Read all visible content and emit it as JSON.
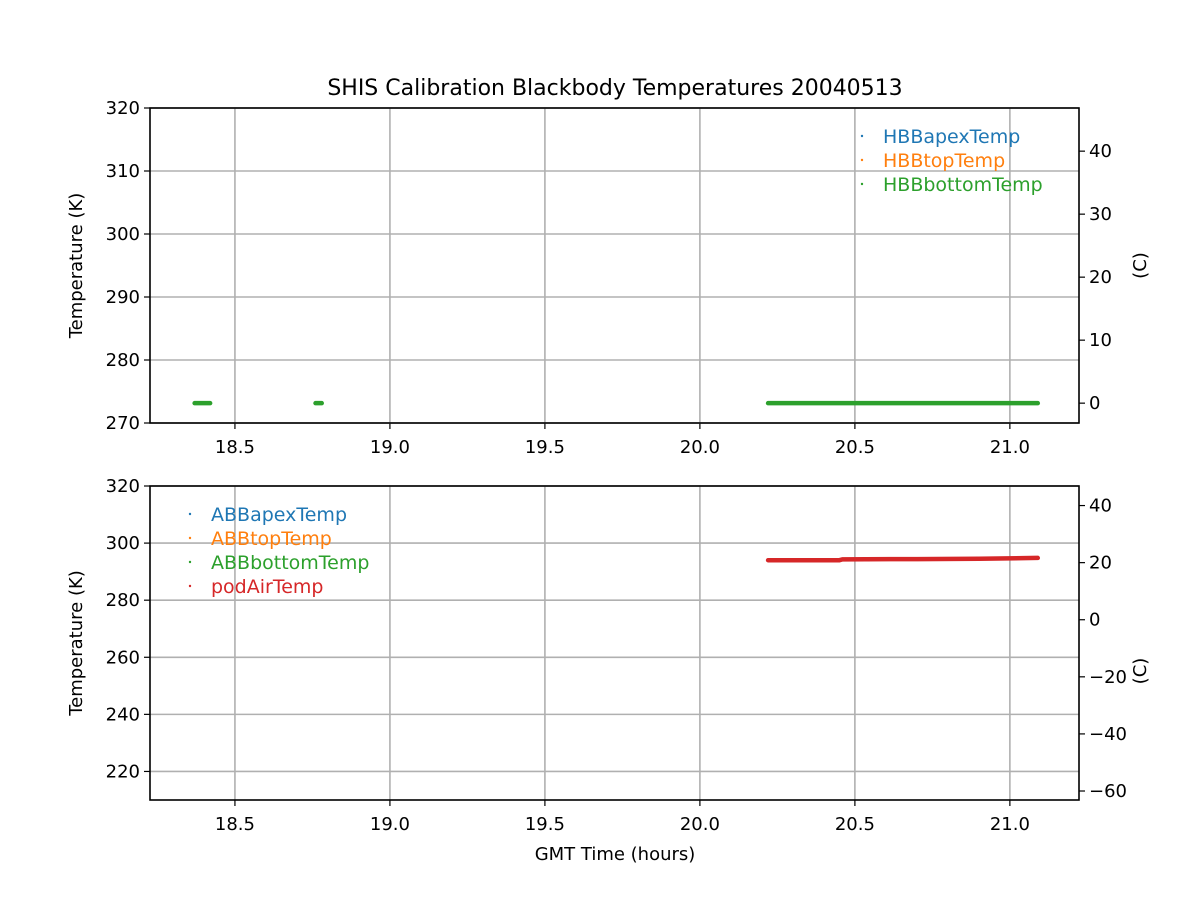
{
  "chart_data": [
    {
      "type": "scatter",
      "title": "SHIS Calibration Blackbody Temperatures 20040513",
      "xlabel": "",
      "ylabel": "Temperature (K)",
      "y2label": "(C)",
      "xlim": [
        18.226,
        21.223
      ],
      "ylim": [
        270,
        320
      ],
      "xticks": [
        "18.5",
        "19.0",
        "19.5",
        "20.0",
        "20.5",
        "21.0"
      ],
      "yticks": [
        "270",
        "280",
        "290",
        "300",
        "310",
        "320"
      ],
      "y2ticks": [
        "0",
        "10",
        "20",
        "30",
        "40"
      ],
      "grid": true,
      "legend": "top-right",
      "series": [
        {
          "name": "HBBapexTemp",
          "color": "#1f77b4",
          "segments": []
        },
        {
          "name": "HBBtopTemp",
          "color": "#ff7f0e",
          "segments": []
        },
        {
          "name": "HBBbottomTemp",
          "color": "#2ca02c",
          "segments": [
            [
              [
                18.37,
                273.15
              ],
              [
                18.42,
                273.15
              ]
            ],
            [
              [
                18.76,
                273.15
              ],
              [
                18.78,
                273.15
              ]
            ],
            [
              [
                20.22,
                273.15
              ],
              [
                21.09,
                273.15
              ]
            ]
          ]
        }
      ]
    },
    {
      "type": "scatter",
      "title": "",
      "xlabel": "GMT Time (hours)",
      "ylabel": "Temperature (K)",
      "y2label": "(C)",
      "xlim": [
        18.226,
        21.223
      ],
      "ylim": [
        210,
        320
      ],
      "xticks": [
        "18.5",
        "19.0",
        "19.5",
        "20.0",
        "20.5",
        "21.0"
      ],
      "yticks": [
        "220",
        "240",
        "260",
        "280",
        "300",
        "320"
      ],
      "y2ticks": [
        "−60",
        "−40",
        "−20",
        "0",
        "20",
        "40"
      ],
      "grid": true,
      "legend": "top-left",
      "series": [
        {
          "name": "ABBapexTemp",
          "color": "#1f77b4",
          "segments": []
        },
        {
          "name": "ABBtopTemp",
          "color": "#ff7f0e",
          "segments": []
        },
        {
          "name": "ABBbottomTemp",
          "color": "#2ca02c",
          "segments": []
        },
        {
          "name": "podAirTemp",
          "color": "#d62728",
          "segments": [
            [
              [
                20.22,
                294.0
              ],
              [
                20.45,
                294.0
              ],
              [
                20.46,
                294.3
              ],
              [
                20.7,
                294.4
              ],
              [
                20.9,
                294.5
              ],
              [
                21.09,
                294.8
              ]
            ]
          ]
        }
      ]
    }
  ]
}
